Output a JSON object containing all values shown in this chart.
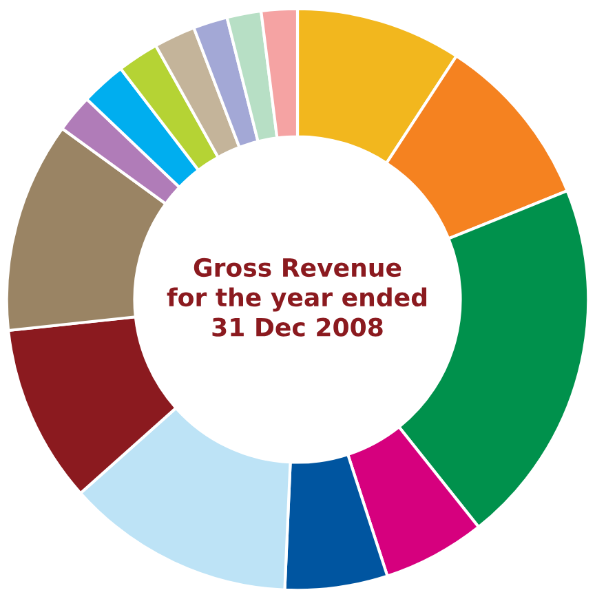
{
  "chart_data": {
    "type": "donut",
    "title": "Gross Revenue\nfor the year ended\n31 Dec 2008",
    "categories": [
      null,
      null,
      null,
      null,
      null,
      null,
      null,
      null,
      null,
      null,
      null,
      null,
      null,
      null,
      null
    ],
    "values": [
      9.2,
      9.7,
      20.4,
      5.7,
      5.7,
      12.7,
      9.9,
      11.7,
      2.1,
      2.5,
      2.3,
      2.3,
      1.9,
      1.9,
      2.0
    ],
    "colors": [
      "#f2b71e",
      "#f58220",
      "#00914c",
      "#d6007e",
      "#0055a0",
      "#bde3f6",
      "#8b1a1f",
      "#9a8464",
      "#b07cb8",
      "#00aeef",
      "#b5d334",
      "#c4b49a",
      "#a3a8d6",
      "#b7dfc5",
      "#f5a3a3"
    ],
    "legend": false
  }
}
